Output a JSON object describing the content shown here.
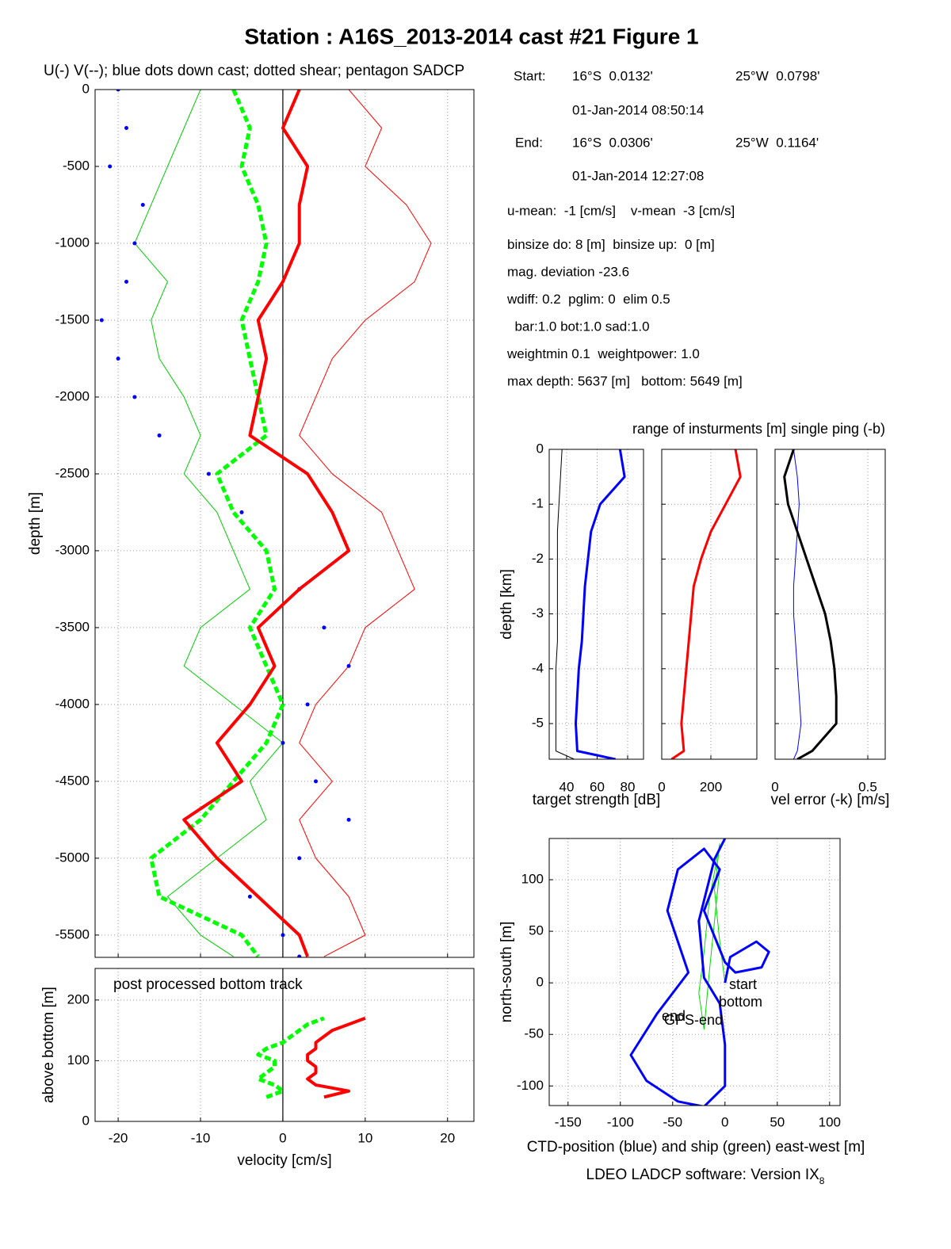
{
  "info": {
    "rows": [
      [
        "Start:",
        "16°S  0.0132'",
        "25°W  0.0798'"
      ],
      [
        "01-Jan-2014 08:50:14"
      ],
      [
        "End:",
        "16°S  0.0306'",
        "25°W  0.1164'"
      ],
      [
        "01-Jan-2014 12:27:08"
      ]
    ],
    "lines": [
      "u-mean:  -1 [cm/s]    v-mean  -3 [cm/s]",
      "binsize do: 8 [m]  binsize up:  0 [m]",
      "mag. deviation -23.6",
      "wdiff: 0.2  pglim: 0  elim 0.5",
      "  bar:1.0 bot:1.0 sad:1.0",
      "weightmin 0.1  weightpower: 1.0",
      "max depth: 5637 [m]   bottom: 5649 [m]"
    ]
  },
  "chart_data": [
    {
      "type": "profile",
      "title": "Station : A16S_2013-2014 cast #21  Figure 1",
      "subtitle": "U(-) V(--); blue dots down cast; dotted shear; pentagon SADCP",
      "ylabel": "depth [m]",
      "xlim": [
        -22.8,
        23.2
      ],
      "ylim": [
        -5645,
        0
      ],
      "xticks": [
        -20,
        -10,
        0,
        10,
        20
      ],
      "yticks": [
        0,
        -500,
        -1000,
        -1500,
        -2000,
        -2500,
        -3000,
        -3500,
        -4000,
        -4500,
        -5000,
        -5500
      ],
      "grid": true,
      "y": [
        0,
        -250,
        -500,
        -750,
        -1000,
        -1250,
        -1500,
        -1750,
        -2000,
        -2250,
        -2500,
        -2750,
        -3000,
        -3250,
        -3500,
        -3750,
        -4000,
        -4250,
        -4500,
        -4750,
        -5000,
        -5250,
        -5500,
        -5640
      ],
      "series": [
        {
          "color": "#ff0000",
          "line_style": "thin",
          "values": [
            8,
            12,
            10,
            15,
            18,
            16,
            10,
            6,
            4,
            2,
            6,
            12,
            14,
            16,
            10,
            8,
            4,
            2,
            6,
            2,
            4,
            8,
            10,
            5
          ]
        },
        {
          "color": "#00cc00",
          "line_style": "thin",
          "values": [
            -10,
            -12,
            -14,
            -16,
            -18,
            -14,
            -16,
            -15,
            -12,
            -10,
            -12,
            -8,
            -6,
            -4,
            -10,
            -12,
            -6,
            0,
            -4,
            -2,
            -8,
            -14,
            -10,
            -6
          ]
        },
        {
          "color": "#0000ff",
          "line_style": "dots",
          "values": [
            -20,
            -19,
            -21,
            -17,
            -18,
            -19,
            -22,
            -20,
            -18,
            -15,
            -9,
            -5,
            -2,
            2,
            5,
            8,
            3,
            0,
            4,
            8,
            2,
            -4,
            0,
            2
          ]
        },
        {
          "color": "#00ff00",
          "line_style": "dashed",
          "values": [
            -6,
            -4,
            -5,
            -3,
            -2,
            -3,
            -5,
            -4,
            -3,
            -2,
            -8,
            -6,
            -2,
            -1,
            -4,
            -2,
            0,
            -2,
            -6,
            -10,
            -16,
            -15,
            -5,
            -3
          ]
        },
        {
          "color": "#ff0000",
          "line_style": "solid",
          "values": [
            2,
            0,
            3,
            2,
            2,
            0,
            -3,
            -2,
            -3,
            -4,
            3,
            6,
            8,
            2,
            -3,
            -1,
            -4,
            -8,
            -5,
            -12,
            -8,
            -3,
            2,
            3
          ]
        }
      ]
    },
    {
      "type": "profile",
      "annotation": "post processed bottom track",
      "xlabel": "velocity [cm/s]",
      "ylabel": "above bottom [m]",
      "xlim": [
        -22.8,
        23.2
      ],
      "ylim": [
        0,
        252
      ],
      "xticks": [
        -20,
        -10,
        0,
        10,
        20
      ],
      "yticks": [
        0,
        100,
        200
      ],
      "grid": true,
      "y": [
        40,
        50,
        60,
        70,
        80,
        90,
        100,
        110,
        120,
        130,
        140,
        150,
        160,
        170
      ],
      "series": [
        {
          "color": "#00ff00",
          "line_style": "dashed",
          "values": [
            -2,
            0,
            -1,
            -3,
            -2,
            -1,
            -1,
            -3,
            -2,
            0,
            1,
            2,
            3,
            5
          ]
        },
        {
          "color": "#ff0000",
          "line_style": "solid",
          "values": [
            5,
            8,
            4,
            3,
            4,
            4,
            3,
            3,
            4,
            4,
            5,
            6,
            8,
            10
          ]
        }
      ]
    },
    {
      "type": "profile",
      "xlabel": "target strength [dB]",
      "xlabel_color": "#0000ff",
      "ylabel": "depth [km]",
      "xlim": [
        28.6,
        90.4
      ],
      "ylim": [
        -5.65,
        0
      ],
      "xticks": [
        40,
        60,
        80
      ],
      "yticks": [
        0,
        -1,
        -2,
        -3,
        -4,
        -5
      ],
      "grid": true,
      "y": [
        0,
        -0.5,
        -1,
        -1.5,
        -2,
        -2.5,
        -3,
        -3.5,
        -4,
        -4.5,
        -5,
        -5.5,
        -5.65
      ],
      "series": [
        {
          "color": "#000000",
          "line_style": "thin",
          "values": [
            37,
            36,
            35,
            34,
            34,
            34,
            34,
            34,
            33,
            33,
            33,
            33,
            45
          ]
        },
        {
          "color": "#0000ff",
          "line_style": "solid",
          "values": [
            75,
            78,
            62,
            56,
            54,
            52,
            51,
            50,
            48,
            47,
            46,
            47,
            72
          ]
        }
      ]
    },
    {
      "type": "profile",
      "title": "range of insturments [m]",
      "title_color": "#ff0000",
      "xlim": [
        0,
        387
      ],
      "ylim": [
        -5.65,
        0
      ],
      "xticks": [
        0,
        200
      ],
      "yticks": [
        0,
        -1,
        -2,
        -3,
        -4,
        -5
      ],
      "grid": true,
      "y": [
        0,
        -0.5,
        -1,
        -1.5,
        -2,
        -2.5,
        -3,
        -3.5,
        -4,
        -4.5,
        -5,
        -5.5,
        -5.65
      ],
      "series": [
        {
          "color": "#ff0000",
          "line_style": "solid",
          "values": [
            300,
            320,
            260,
            200,
            160,
            130,
            120,
            110,
            100,
            90,
            80,
            90,
            40
          ]
        }
      ]
    },
    {
      "type": "profile",
      "title": "single ping (-b)",
      "title_color": "#0000ff",
      "xlabel": "vel error (-k) [m/s]",
      "xlim": [
        0,
        0.594
      ],
      "ylim": [
        -5.65,
        0
      ],
      "xticks": [
        0,
        0.5
      ],
      "yticks": [
        0,
        -1,
        -2,
        -3,
        -4,
        -5
      ],
      "grid": true,
      "y": [
        0,
        -0.5,
        -1,
        -1.5,
        -2,
        -2.5,
        -3,
        -3.5,
        -4,
        -4.5,
        -5,
        -5.5,
        -5.65
      ],
      "series": [
        {
          "color": "#0000ff",
          "line_style": "thin",
          "values": [
            0.1,
            0.12,
            0.13,
            0.12,
            0.11,
            0.1,
            0.1,
            0.11,
            0.12,
            0.13,
            0.14,
            0.12,
            0.1
          ]
        },
        {
          "color": "#000000",
          "line_style": "solid",
          "values": [
            0.1,
            0.05,
            0.07,
            0.12,
            0.17,
            0.22,
            0.27,
            0.3,
            0.32,
            0.33,
            0.33,
            0.2,
            0.12
          ]
        }
      ]
    },
    {
      "type": "line",
      "xlabel": "CTD-position (blue) and ship (green) east-west [m]",
      "ylabel": "north-south [m]",
      "footer": "LDEO LADCP software: Version IX",
      "footer_sub": "8",
      "annotations": [
        "start",
        "bottom",
        "end",
        "GPS-end"
      ],
      "xlim": [
        -168,
        110
      ],
      "ylim": [
        -119,
        140
      ],
      "xticks": [
        -150,
        -100,
        -50,
        0,
        50,
        100
      ],
      "yticks": [
        -100,
        -50,
        0,
        50,
        100
      ],
      "grid": true,
      "series": [
        {
          "color": "#00dd00",
          "line_style": "thin",
          "x": [
            0,
            -5,
            -10,
            -5,
            -15,
            -20,
            -25,
            -20,
            -15,
            -10,
            -5
          ],
          "y": [
            0,
            40,
            90,
            135,
            80,
            30,
            -10,
            -45,
            10,
            60,
            110
          ]
        },
        {
          "color": "#0000ff",
          "line_style": "solid",
          "x": [
            0,
            5,
            30,
            42,
            35,
            10,
            0,
            -20,
            -5,
            -20,
            -45,
            -55,
            -35,
            -65,
            -90,
            -75,
            -45,
            -20,
            0,
            0,
            -5,
            -20,
            -25,
            -10,
            0
          ],
          "y": [
            0,
            25,
            40,
            30,
            15,
            10,
            20,
            70,
            110,
            130,
            110,
            70,
            10,
            -30,
            -70,
            -95,
            -115,
            -120,
            -100,
            -60,
            -20,
            5,
            60,
            120,
            140
          ]
        }
      ]
    }
  ]
}
